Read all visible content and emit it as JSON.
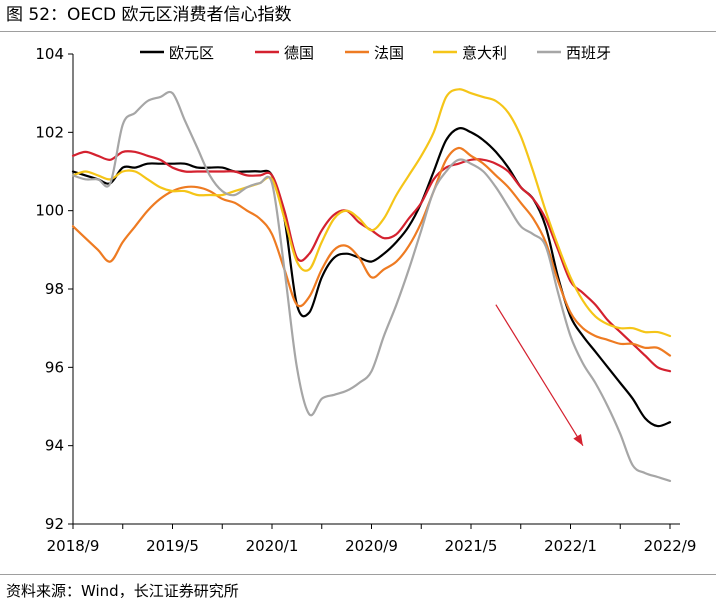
{
  "figure": {
    "title": "图 52：OECD 欧元区消费者信心指数",
    "source": "资料来源：Wind，长江证券研究所"
  },
  "chart_data": {
    "type": "line",
    "title": "",
    "xlabel": "",
    "ylabel": "",
    "ylim": [
      92,
      104
    ],
    "yticks": [
      92,
      94,
      96,
      98,
      100,
      102,
      104
    ],
    "xlim": [
      "2018-09",
      "2022-09"
    ],
    "xtick_labels": [
      "2018/9",
      "2019/5",
      "2020/1",
      "2020/9",
      "2021/5",
      "2022/1",
      "2022/9"
    ],
    "x": [
      "2018-09",
      "2018-10",
      "2018-11",
      "2018-12",
      "2019-01",
      "2019-02",
      "2019-03",
      "2019-04",
      "2019-05",
      "2019-06",
      "2019-07",
      "2019-08",
      "2019-09",
      "2019-10",
      "2019-11",
      "2019-12",
      "2020-01",
      "2020-02",
      "2020-03",
      "2020-04",
      "2020-05",
      "2020-06",
      "2020-07",
      "2020-08",
      "2020-09",
      "2020-10",
      "2020-11",
      "2020-12",
      "2021-01",
      "2021-02",
      "2021-03",
      "2021-04",
      "2021-05",
      "2021-06",
      "2021-07",
      "2021-08",
      "2021-09",
      "2021-10",
      "2021-11",
      "2021-12",
      "2022-01",
      "2022-02",
      "2022-03",
      "2022-04",
      "2022-05",
      "2022-06",
      "2022-07",
      "2022-08",
      "2022-09"
    ],
    "series": [
      {
        "name": "欧元区",
        "color": "#000000",
        "values": [
          101.0,
          100.9,
          100.8,
          100.7,
          101.1,
          101.1,
          101.2,
          101.2,
          101.2,
          101.2,
          101.1,
          101.1,
          101.1,
          101.0,
          101.0,
          101.0,
          100.9,
          99.8,
          97.6,
          97.4,
          98.3,
          98.8,
          98.9,
          98.8,
          98.7,
          98.9,
          99.2,
          99.6,
          100.2,
          101.0,
          101.8,
          102.1,
          102.0,
          101.8,
          101.5,
          101.1,
          100.6,
          100.3,
          99.6,
          98.3,
          97.3,
          96.8,
          96.4,
          96.0,
          95.6,
          95.2,
          94.7,
          94.5,
          94.6
        ]
      },
      {
        "name": "德国",
        "color": "#d4212f",
        "values": [
          101.4,
          101.5,
          101.4,
          101.3,
          101.5,
          101.5,
          101.4,
          101.3,
          101.1,
          101.0,
          101.0,
          101.0,
          101.0,
          101.0,
          100.9,
          100.9,
          100.9,
          100.0,
          98.8,
          98.9,
          99.5,
          99.9,
          100.0,
          99.7,
          99.5,
          99.3,
          99.4,
          99.8,
          100.2,
          100.8,
          101.1,
          101.2,
          101.3,
          101.3,
          101.2,
          101.0,
          100.6,
          100.3,
          99.8,
          99.0,
          98.2,
          97.9,
          97.6,
          97.2,
          96.9,
          96.6,
          96.3,
          96.0,
          95.9
        ]
      },
      {
        "name": "法国",
        "color": "#ee7b22",
        "values": [
          99.6,
          99.3,
          99.0,
          98.7,
          99.2,
          99.6,
          100.0,
          100.3,
          100.5,
          100.6,
          100.6,
          100.5,
          100.3,
          100.2,
          100.0,
          99.8,
          99.4,
          98.5,
          97.6,
          97.8,
          98.5,
          99.0,
          99.1,
          98.8,
          98.3,
          98.5,
          98.7,
          99.1,
          99.7,
          100.5,
          101.3,
          101.6,
          101.4,
          101.2,
          100.9,
          100.6,
          100.2,
          99.8,
          99.2,
          98.2,
          97.4,
          97.0,
          96.8,
          96.7,
          96.6,
          96.6,
          96.5,
          96.5,
          96.3
        ]
      },
      {
        "name": "意大利",
        "color": "#f5c518",
        "values": [
          100.9,
          101.0,
          100.9,
          100.8,
          101.0,
          101.0,
          100.8,
          100.6,
          100.5,
          100.5,
          100.4,
          100.4,
          100.4,
          100.5,
          100.6,
          100.7,
          100.8,
          99.8,
          98.7,
          98.5,
          99.2,
          99.8,
          100.0,
          99.8,
          99.5,
          99.8,
          100.4,
          100.9,
          101.4,
          102.0,
          102.9,
          103.1,
          103.0,
          102.9,
          102.8,
          102.5,
          101.9,
          101.0,
          100.0,
          99.1,
          98.3,
          97.7,
          97.3,
          97.1,
          97.0,
          97.0,
          96.9,
          96.9,
          96.8
        ]
      },
      {
        "name": "西班牙",
        "color": "#a6a6a6",
        "values": [
          100.9,
          100.8,
          100.8,
          100.7,
          102.2,
          102.5,
          102.8,
          102.9,
          103.0,
          102.3,
          101.6,
          100.9,
          100.5,
          100.4,
          100.6,
          100.7,
          100.7,
          98.5,
          96.0,
          94.8,
          95.2,
          95.3,
          95.4,
          95.6,
          95.9,
          96.8,
          97.6,
          98.5,
          99.5,
          100.5,
          101.0,
          101.3,
          101.2,
          101.0,
          100.6,
          100.1,
          99.6,
          99.4,
          99.1,
          97.9,
          96.8,
          96.1,
          95.6,
          95.0,
          94.3,
          93.5,
          93.3,
          93.2,
          93.1
        ]
      }
    ],
    "legend_position": "top",
    "grid": false,
    "annotations": [
      {
        "type": "arrow",
        "color": "#d4212f",
        "from": [
          "2021-07",
          97.6
        ],
        "to": [
          "2022-02",
          94.0
        ]
      }
    ]
  }
}
